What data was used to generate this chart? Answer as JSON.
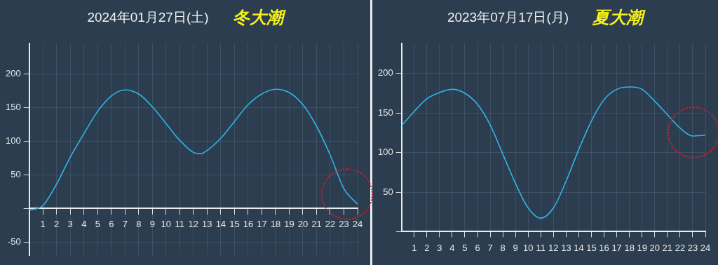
{
  "chart_data": [
    {
      "type": "line",
      "title": "2024年01月27日(土)",
      "subtitle": "冬大潮",
      "color": "#2fb5e4",
      "marker": "none",
      "grid": true,
      "x": [
        0,
        1,
        2,
        3,
        4,
        5,
        6,
        7,
        8,
        9,
        10,
        11,
        12,
        12.5,
        13,
        14,
        15,
        16,
        17,
        18,
        19,
        20,
        21,
        22,
        23,
        24
      ],
      "values": [
        -3,
        4,
        36,
        76,
        111,
        144,
        167,
        176,
        170,
        151,
        126,
        101,
        83,
        81,
        86,
        104,
        129,
        154,
        170,
        177,
        172,
        154,
        122,
        79,
        29,
        6
      ],
      "xlim": [
        0,
        24
      ],
      "xticks": [
        1,
        2,
        3,
        4,
        5,
        6,
        7,
        8,
        9,
        10,
        11,
        12,
        13,
        14,
        15,
        16,
        17,
        18,
        19,
        20,
        21,
        22,
        23,
        24
      ],
      "ylim": [
        -70,
        245
      ],
      "yticks": [
        -50,
        {
          "value": 0,
          "label": null
        },
        50,
        100,
        150,
        200
      ]
    },
    {
      "type": "line",
      "title": "2023年07月17日(月)",
      "subtitle": "夏大潮",
      "color": "#2fb5e4",
      "marker": "none",
      "grid": true,
      "x": [
        0,
        1,
        2,
        3,
        4,
        5,
        6,
        7,
        8,
        9,
        10,
        11,
        12,
        13,
        14,
        15,
        16,
        17,
        18,
        19,
        20,
        21,
        22,
        23,
        24
      ],
      "values": [
        134,
        152,
        168,
        176,
        180,
        175,
        161,
        135,
        98,
        61,
        30,
        17,
        30,
        64,
        104,
        140,
        167,
        180,
        183,
        180,
        165,
        148,
        131,
        121,
        122
      ],
      "xlim": [
        0,
        24
      ],
      "xticks": [
        1,
        2,
        3,
        4,
        5,
        6,
        7,
        8,
        9,
        10,
        11,
        12,
        13,
        14,
        15,
        16,
        17,
        18,
        19,
        20,
        21,
        22,
        23,
        24
      ],
      "ylim": [
        0,
        238
      ],
      "yticks": [
        {
          "value": 0,
          "label": null
        },
        50,
        100,
        150,
        200
      ]
    }
  ]
}
